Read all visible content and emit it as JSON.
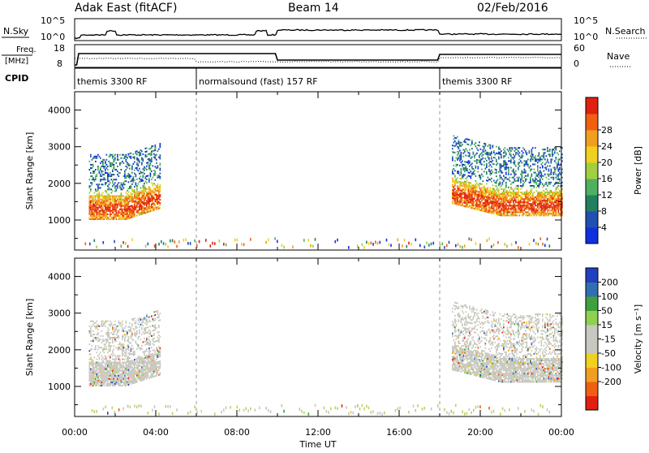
{
  "header": {
    "station": "Adak East (fitACF)",
    "beam": "Beam 14",
    "date": "02/Feb/2016"
  },
  "labels": {
    "nsky": "N.Sky",
    "nsky_tick_top": "10^5",
    "nsky_tick_bottom": "10^0",
    "nsearch": "N.Search",
    "nsearch_tick_top": "10^5",
    "nsearch_tick_bottom": "10^0",
    "freq": "Freq.",
    "freq_unit": "[MHz]",
    "freq_tick_top": "18",
    "freq_tick_bottom": "8",
    "nave": "Nave",
    "nave_tick_top": "60",
    "nave_tick_bottom": "0",
    "cpid": "CPID"
  },
  "cpid_segments": [
    {
      "start": 0,
      "end": 6,
      "label": "themis 3300 RF"
    },
    {
      "start": 6,
      "end": 18,
      "label": "normalsound (fast) 157 RF"
    },
    {
      "start": 18,
      "end": 24,
      "label": "themis 3300 RF"
    }
  ],
  "chart_data": [
    {
      "type": "heatmap",
      "name": "power",
      "ylabel": "Slant Range [km]",
      "ylim": [
        180,
        4500
      ],
      "yticks": [
        "1000",
        "2000",
        "3000",
        "4000"
      ],
      "xlim": [
        0,
        24
      ],
      "colorbar": {
        "label": "Power [dB]",
        "ticks": [
          "4",
          "8",
          "12",
          "16",
          "20",
          "24",
          "28"
        ],
        "colors": [
          "#1030e0",
          "#2050b0",
          "#208060",
          "#50b060",
          "#a0d040",
          "#f0d020",
          "#f0a020",
          "#f06010",
          "#e02010"
        ]
      },
      "regions": [
        {
          "x": [
            0.7,
            4.2
          ],
          "range": [
            1100,
            2900
          ],
          "note": "dense echoes, power 12-28 dB near 1200-2000 km"
        },
        {
          "x": [
            18.5,
            24.0
          ],
          "range": [
            1200,
            3200
          ],
          "note": "dense echoes, power 12-28 dB near 1300-2200 km"
        },
        {
          "x": [
            4.2,
            18.5
          ],
          "range": [
            180,
            450
          ],
          "note": "sparse near-range echoes"
        }
      ]
    },
    {
      "type": "heatmap",
      "name": "velocity",
      "ylabel": "Slant Range [km]",
      "ylim": [
        180,
        4500
      ],
      "yticks": [
        "1000",
        "2000",
        "3000",
        "4000"
      ],
      "xlim": [
        0,
        24
      ],
      "colorbar": {
        "label": "Velocity [m s⁻¹]",
        "ticks": [
          "200",
          "100",
          "50",
          "15",
          "-15",
          "-50",
          "-100",
          "-200"
        ],
        "colors": [
          "#2040c0",
          "#3070b0",
          "#40a040",
          "#90d050",
          "#c8c8c0",
          "#c8c8c0",
          "#f0d020",
          "#f0a020",
          "#f06010",
          "#e02010"
        ]
      },
      "regions": [
        {
          "x": [
            0.7,
            4.2
          ],
          "range": [
            1100,
            2900
          ],
          "note": "mostly ground scatter (grey)"
        },
        {
          "x": [
            18.5,
            24.0
          ],
          "range": [
            1200,
            3200
          ],
          "note": "mostly ground scatter (grey)"
        },
        {
          "x": [
            4.2,
            18.5
          ],
          "range": [
            180,
            450
          ],
          "note": "sparse near-range echoes, mixed velocities"
        }
      ]
    }
  ],
  "xaxis": {
    "title": "Time UT",
    "ticks": [
      "00:00",
      "04:00",
      "08:00",
      "12:00",
      "16:00",
      "20:00",
      "00:00"
    ]
  }
}
